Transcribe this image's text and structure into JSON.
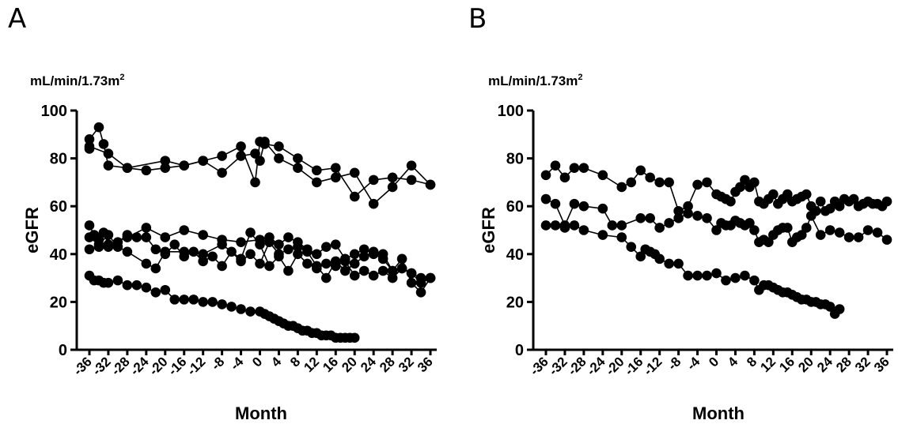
{
  "panels": [
    {
      "letter": "A"
    },
    {
      "letter": "B"
    }
  ],
  "chart_data": [
    {
      "type": "line",
      "panel": "A",
      "unit_label": "mL/min/1.73m",
      "unit_superscript": "2",
      "xlabel": "Month",
      "ylabel": "eGFR",
      "xlim": [
        -37,
        37
      ],
      "ylim": [
        0,
        100
      ],
      "xticks": [
        -36,
        -32,
        -28,
        -24,
        -20,
        -16,
        -12,
        -8,
        -4,
        0,
        4,
        8,
        12,
        16,
        20,
        24,
        28,
        32,
        36
      ],
      "xtick_labels": [
        "-36",
        "-32",
        "-28",
        "-24",
        "-20",
        "-16",
        "-12",
        "-8",
        "-4",
        "0",
        "4",
        "8",
        "12",
        "16",
        "20",
        "24",
        "28",
        "32",
        "36"
      ],
      "yticks": [
        0,
        20,
        40,
        60,
        80,
        100
      ],
      "ytick_labels": [
        "0",
        "20",
        "40",
        "60",
        "80",
        "100"
      ],
      "series": [
        {
          "x": [
            -36,
            -36,
            -34,
            -33,
            -32,
            -28,
            -20,
            -16,
            -12,
            -8,
            -4,
            -1,
            0,
            1,
            4,
            8,
            12,
            16,
            20,
            24,
            28,
            32,
            36
          ],
          "y": [
            84,
            88,
            93,
            86,
            77,
            76,
            79,
            77,
            79,
            74,
            81,
            82,
            79,
            87,
            80,
            76,
            70,
            72,
            74,
            61,
            68,
            77,
            69
          ]
        },
        {
          "x": [
            -36,
            -32,
            -28,
            -24,
            -20,
            -16,
            -12,
            -8,
            -4,
            -1,
            0,
            1,
            4,
            8,
            12,
            16,
            20,
            24,
            28,
            32,
            36
          ],
          "y": [
            85,
            82,
            76,
            75,
            76,
            77,
            79,
            81,
            85,
            70,
            87,
            86,
            85,
            80,
            75,
            76,
            64,
            71,
            72,
            71,
            69
          ]
        },
        {
          "x": [
            -36,
            -35,
            -34,
            -33,
            -32,
            -28,
            -24,
            -20,
            -16,
            -12,
            -8,
            -4,
            0,
            2,
            4,
            6,
            8,
            10,
            12,
            14,
            16,
            18,
            20,
            22,
            24,
            26,
            28,
            30,
            32,
            34,
            36
          ],
          "y": [
            52,
            48,
            46,
            49,
            44,
            47,
            51,
            47,
            50,
            48,
            46,
            45,
            46,
            47,
            44,
            47,
            45,
            42,
            40,
            43,
            44,
            38,
            40,
            42,
            40,
            38,
            33,
            34,
            32,
            30,
            30
          ]
        },
        {
          "x": [
            -36,
            -34,
            -32,
            -30,
            -28,
            -24,
            -22,
            -20,
            -16,
            -12,
            -8,
            -4,
            -2,
            0,
            2,
            4,
            6,
            8,
            10,
            12,
            14,
            16,
            18,
            20,
            22,
            24,
            26,
            28,
            30,
            32,
            34,
            36
          ],
          "y": [
            47,
            44,
            48,
            43,
            41,
            36,
            34,
            41,
            41,
            40,
            44,
            38,
            49,
            44,
            35,
            39,
            33,
            40,
            36,
            34,
            36,
            35,
            37,
            31,
            33,
            31,
            33,
            30,
            34,
            32,
            28,
            30
          ]
        },
        {
          "x": [
            -36,
            -34,
            -32,
            -30,
            -28,
            -26,
            -24,
            -22,
            -20,
            -18,
            -16,
            -14,
            -12,
            -10,
            -8,
            -6,
            -4,
            -2,
            0,
            2,
            4,
            6,
            8,
            10,
            12,
            14,
            16,
            18,
            20,
            22,
            24,
            26,
            28,
            30,
            32,
            34,
            36
          ],
          "y": [
            42,
            43,
            43,
            45,
            48,
            47,
            47,
            42,
            40,
            44,
            39,
            41,
            37,
            39,
            35,
            41,
            37,
            40,
            36,
            45,
            40,
            42,
            43,
            41,
            35,
            30,
            37,
            33,
            36,
            39,
            41,
            40,
            33,
            38,
            28,
            24,
            30
          ]
        },
        {
          "x": [
            -36,
            -35,
            -34,
            -33,
            -32,
            -30,
            -28,
            -26,
            -24,
            -22,
            -20,
            -18,
            -16,
            -14,
            -12,
            -10,
            -8,
            -6,
            -4,
            -2,
            0,
            1,
            2,
            3,
            4,
            5,
            6,
            7,
            8,
            9,
            10,
            11,
            12,
            13,
            14,
            15,
            16,
            17,
            18,
            19,
            20
          ],
          "y": [
            31,
            29,
            29,
            28,
            28,
            29,
            27,
            27,
            26,
            24,
            25,
            21,
            21,
            21,
            20,
            20,
            19,
            18,
            17,
            16,
            16,
            15,
            14,
            13,
            12,
            11,
            10,
            10,
            9,
            8,
            8,
            7,
            7,
            6,
            6,
            6,
            5,
            5,
            5,
            5,
            5
          ]
        }
      ]
    },
    {
      "type": "line",
      "panel": "B",
      "unit_label": "mL/min/1.73m",
      "unit_superscript": "2",
      "xlabel": "Month",
      "ylabel": "eGFR",
      "xlim": [
        -37,
        37
      ],
      "ylim": [
        0,
        100
      ],
      "xticks": [
        -36,
        -32,
        -28,
        -24,
        -20,
        -16,
        -12,
        -8,
        -4,
        0,
        4,
        8,
        12,
        16,
        20,
        24,
        28,
        32,
        36
      ],
      "xtick_labels": [
        "-36",
        "-32",
        "-28",
        "-24",
        "-20",
        "-16",
        "-12",
        "-8",
        "-4",
        "0",
        "4",
        "8",
        "12",
        "16",
        "20",
        "24",
        "28",
        "32",
        "36"
      ],
      "yticks": [
        0,
        20,
        40,
        60,
        80,
        100
      ],
      "ytick_labels": [
        "0",
        "20",
        "40",
        "60",
        "80",
        "100"
      ],
      "series": [
        {
          "x": [
            -36,
            -34,
            -32,
            -30,
            -28,
            -24,
            -20,
            -18,
            -16,
            -14,
            -12,
            -10,
            -8,
            -6,
            -4,
            -2,
            0,
            1,
            2,
            3,
            4,
            5,
            6,
            7,
            8,
            9,
            10,
            11,
            12,
            13,
            14,
            15,
            16,
            17,
            18,
            19,
            20,
            21,
            22,
            23,
            24,
            25,
            26,
            27,
            28,
            29,
            30,
            31,
            32,
            33,
            34,
            35,
            36
          ],
          "y": [
            73,
            77,
            72,
            76,
            76,
            73,
            68,
            70,
            75,
            72,
            70,
            70,
            58,
            60,
            69,
            70,
            65,
            64,
            63,
            62,
            66,
            68,
            71,
            68,
            70,
            62,
            61,
            63,
            65,
            61,
            63,
            65,
            62,
            63,
            64,
            65,
            60,
            58,
            62,
            58,
            59,
            62,
            60,
            63,
            62,
            63,
            60,
            61,
            62,
            61,
            61,
            60,
            62
          ]
        },
        {
          "x": [
            -36,
            -34,
            -32,
            -30,
            -28,
            -24,
            -22,
            -20,
            -16,
            -14,
            -12,
            -10,
            -8,
            -6,
            -4,
            -2,
            0,
            1,
            2,
            3,
            4,
            5,
            6,
            7,
            8,
            9,
            10,
            11,
            12,
            13,
            14,
            15,
            16,
            17,
            18,
            19,
            20,
            22,
            24,
            26,
            28,
            30,
            32,
            34,
            36
          ],
          "y": [
            63,
            61,
            52,
            61,
            60,
            59,
            52,
            52,
            55,
            55,
            51,
            53,
            55,
            57,
            56,
            55,
            50,
            53,
            52,
            52,
            54,
            53,
            52,
            53,
            50,
            45,
            46,
            45,
            48,
            50,
            51,
            51,
            45,
            47,
            48,
            51,
            56,
            48,
            50,
            49,
            47,
            47,
            50,
            49,
            46
          ]
        },
        {
          "x": [
            -36,
            -34,
            -32,
            -30,
            -28,
            -24,
            -20,
            -18,
            -16,
            -15,
            -14,
            -13,
            -12,
            -10,
            -8,
            -6,
            -4,
            -2,
            0,
            2,
            4,
            6,
            8,
            9,
            10,
            11,
            12,
            13,
            14,
            15,
            16,
            17,
            18,
            19,
            20,
            21,
            22,
            23,
            24,
            25,
            26
          ],
          "y": [
            52,
            52,
            51,
            52,
            50,
            48,
            47,
            43,
            39,
            42,
            41,
            40,
            38,
            36,
            36,
            31,
            31,
            31,
            32,
            29,
            30,
            31,
            29,
            25,
            27,
            27,
            26,
            25,
            24,
            24,
            23,
            22,
            21,
            21,
            20,
            20,
            19,
            19,
            18,
            15,
            17
          ]
        }
      ]
    }
  ]
}
